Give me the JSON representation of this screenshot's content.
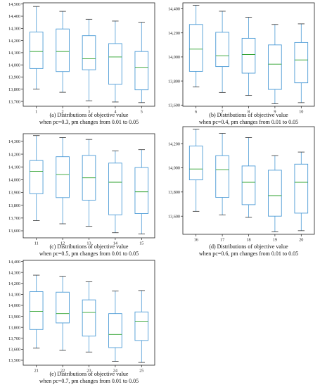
{
  "chart_data": [
    {
      "type": "box",
      "title": "(a) Distributions of objective value",
      "subtitle": "when pc=0.3, pm changes from 0.01 to 0.05",
      "categories": [
        "1",
        "2",
        "3",
        "4",
        "5"
      ],
      "yticks": [
        "13,700",
        "13,800",
        "13,900",
        "14,000",
        "14,100",
        "14,200",
        "14,300",
        "14,400",
        "14,500"
      ],
      "ylim": [
        13660,
        14510
      ],
      "boxes": [
        {
          "whisker_low": 13800,
          "q1": 13970,
          "median": 14110,
          "q3": 14270,
          "whisker_high": 14480
        },
        {
          "whisker_low": 13775,
          "q1": 13945,
          "median": 14110,
          "q3": 14295,
          "whisker_high": 14440
        },
        {
          "whisker_low": 13705,
          "q1": 13960,
          "median": 14050,
          "q3": 14240,
          "whisker_high": 14375
        },
        {
          "whisker_low": 13695,
          "q1": 13840,
          "median": 14065,
          "q3": 14175,
          "whisker_high": 14360
        },
        {
          "whisker_low": 13690,
          "q1": 13795,
          "median": 13980,
          "q3": 14110,
          "whisker_high": 14350
        }
      ]
    },
    {
      "type": "box",
      "title": "(b) Distributions of objective value",
      "subtitle": "when pc=0.4, pm changes from 0.01 to 0.05",
      "categories": [
        "6",
        "7",
        "8",
        "9",
        "10"
      ],
      "yticks": [
        "13,600",
        "13,800",
        "14,000",
        "14,200",
        "14,400"
      ],
      "ylim": [
        13590,
        14450
      ],
      "boxes": [
        {
          "whisker_low": 13750,
          "q1": 13880,
          "median": 14065,
          "q3": 14270,
          "whisker_high": 14430
        },
        {
          "whisker_low": 13705,
          "q1": 13920,
          "median": 14010,
          "q3": 14205,
          "whisker_high": 14380
        },
        {
          "whisker_low": 13680,
          "q1": 13865,
          "median": 14020,
          "q3": 14155,
          "whisker_high": 14330
        },
        {
          "whisker_low": 13610,
          "q1": 13730,
          "median": 13940,
          "q3": 14100,
          "whisker_high": 14270
        },
        {
          "whisker_low": 13620,
          "q1": 13785,
          "median": 13975,
          "q3": 14120,
          "whisker_high": 14275
        }
      ]
    },
    {
      "type": "box",
      "title": "(c) Distributions of objective value",
      "subtitle": "when pc=0.5, pm changes from 0.01 to 0.05",
      "categories": [
        "11",
        "12",
        "13",
        "14",
        "15"
      ],
      "yticks": [
        "13,600",
        "13,700",
        "13,800",
        "13,900",
        "14,000",
        "14,100",
        "14,200",
        "14,300"
      ],
      "ylim": [
        13545,
        14360
      ],
      "boxes": [
        {
          "whisker_low": 13680,
          "q1": 13890,
          "median": 14065,
          "q3": 14150,
          "whisker_high": 14345
        },
        {
          "whisker_low": 13655,
          "q1": 13860,
          "median": 14040,
          "q3": 14180,
          "whisker_high": 14330
        },
        {
          "whisker_low": 13635,
          "q1": 13840,
          "median": 14015,
          "q3": 14190,
          "whisker_high": 14315
        },
        {
          "whisker_low": 13585,
          "q1": 13725,
          "median": 13980,
          "q3": 14130,
          "whisker_high": 14225
        },
        {
          "whisker_low": 13575,
          "q1": 13735,
          "median": 13905,
          "q3": 14095,
          "whisker_high": 14235
        }
      ]
    },
    {
      "type": "box",
      "title": "(d) Distributions of objective value",
      "subtitle": "when pc=0.6, pm changes from 0.01 to 0.05",
      "categories": [
        "16",
        "17",
        "18",
        "19",
        "20"
      ],
      "yticks": [
        "13,600",
        "13,800",
        "14,000",
        "14,200"
      ],
      "ylim": [
        13450,
        14340
      ],
      "boxes": [
        {
          "whisker_low": 13640,
          "q1": 13900,
          "median": 13990,
          "q3": 14180,
          "whisker_high": 14320
        },
        {
          "whisker_low": 13610,
          "q1": 13755,
          "median": 13985,
          "q3": 14100,
          "whisker_high": 14285
        },
        {
          "whisker_low": 13590,
          "q1": 13695,
          "median": 13880,
          "q3": 14015,
          "whisker_high": 14250
        },
        {
          "whisker_low": 13470,
          "q1": 13600,
          "median": 13770,
          "q3": 13980,
          "whisker_high": 14100
        },
        {
          "whisker_low": 13480,
          "q1": 13625,
          "median": 13880,
          "q3": 14030,
          "whisker_high": 14130
        }
      ]
    },
    {
      "type": "box",
      "title": "(e) Distributions of objective value",
      "subtitle": "when pc=0.7, pm changes from 0.01 to 0.05",
      "categories": [
        "21",
        "22",
        "23",
        "24",
        "25"
      ],
      "yticks": [
        "13,500",
        "13,600",
        "13,700",
        "13,800",
        "13,900",
        "14,000",
        "14,100",
        "14,200",
        "14,300",
        "14,400"
      ],
      "ylim": [
        13455,
        14410
      ],
      "boxes": [
        {
          "whisker_low": 13610,
          "q1": 13780,
          "median": 13945,
          "q3": 14125,
          "whisker_high": 14275
        },
        {
          "whisker_low": 13590,
          "q1": 13840,
          "median": 13925,
          "q3": 14120,
          "whisker_high": 14265
        },
        {
          "whisker_low": 13575,
          "q1": 13720,
          "median": 13935,
          "q3": 14050,
          "whisker_high": 14215
        },
        {
          "whisker_low": 13490,
          "q1": 13615,
          "median": 13735,
          "q3": 13925,
          "whisker_high": 14130
        },
        {
          "whisker_low": 13480,
          "q1": 13680,
          "median": 13855,
          "q3": 13940,
          "whisker_high": 14135
        }
      ]
    }
  ],
  "colors": {
    "box": "#4c9bd6",
    "median": "#2ca02c",
    "whisker": "#333333",
    "axis": "#222222"
  }
}
